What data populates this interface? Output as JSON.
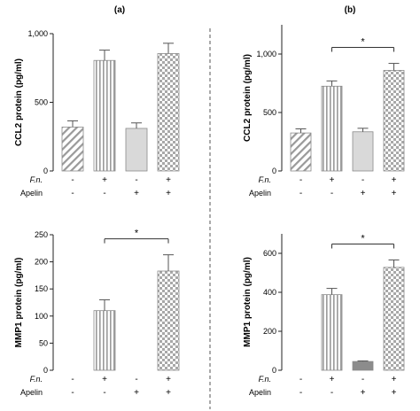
{
  "figure": {
    "panel_labels": [
      "(a)",
      "(b)"
    ],
    "row_labels": [
      "F.n.",
      "Apelin"
    ],
    "fn_signs": [
      "-",
      "+",
      "-",
      "+"
    ],
    "apelin_signs": [
      "-",
      "-",
      "+",
      "+"
    ],
    "fill_patterns": [
      "diagonal-hatch",
      "vertical-stripes",
      "solid-light-gray",
      "checkerboard"
    ]
  },
  "chart_data": [
    {
      "type": "bar",
      "panel": "(a)",
      "categories": [
        "F.n. - / Apelin -",
        "F.n. + / Apelin -",
        "F.n. - / Apelin +",
        "F.n. + / Apelin +"
      ],
      "values": [
        320,
        805,
        310,
        855
      ],
      "errors": [
        45,
        75,
        40,
        75
      ],
      "ylabel": "CCL2 protein (pg/ml)",
      "ylim": [
        0,
        1000
      ],
      "yticks": [
        0,
        500,
        1000
      ],
      "ytick_labels": [
        "0",
        "500",
        "1,000"
      ],
      "significance": [],
      "bar_colors": [
        "#ffffff",
        "#ffffff",
        "#d9d9d9",
        "#ffffff"
      ],
      "pattern_color": "#9a9a9a"
    },
    {
      "type": "bar",
      "panel": "(b)",
      "categories": [
        "F.n. - / Apelin -",
        "F.n. + / Apelin -",
        "F.n. - / Apelin +",
        "F.n. + / Apelin +"
      ],
      "values": [
        325,
        725,
        335,
        860
      ],
      "errors": [
        35,
        45,
        30,
        60
      ],
      "ylabel": "CCL2 protein (pg/ml)",
      "ylim": [
        0,
        1250
      ],
      "yticks": [
        0,
        500,
        1000
      ],
      "ytick_labels": [
        "0",
        "500",
        "1,000"
      ],
      "significance": [
        {
          "from": 1,
          "to": 3,
          "label": "*"
        }
      ],
      "bar_colors": [
        "#ffffff",
        "#ffffff",
        "#d9d9d9",
        "#ffffff"
      ],
      "pattern_color": "#9a9a9a"
    },
    {
      "type": "bar",
      "panel": "(a)",
      "categories": [
        "F.n. - / Apelin -",
        "F.n. + / Apelin -",
        "F.n. - / Apelin +",
        "F.n. + / Apelin +"
      ],
      "values": [
        0,
        110,
        0,
        183
      ],
      "errors": [
        0,
        20,
        0,
        30
      ],
      "ylabel": "MMP1 protein (pg/ml)",
      "ylim": [
        0,
        250
      ],
      "yticks": [
        0,
        50,
        100,
        150,
        200,
        250
      ],
      "ytick_labels": [
        "0",
        "50",
        "100",
        "150",
        "200",
        "250"
      ],
      "significance": [
        {
          "from": 1,
          "to": 3,
          "label": "*"
        }
      ],
      "bar_colors": [
        "#ffffff",
        "#ffffff",
        "#d9d9d9",
        "#ffffff"
      ],
      "pattern_color": "#9a9a9a"
    },
    {
      "type": "bar",
      "panel": "(b)",
      "categories": [
        "F.n. - / Apelin -",
        "F.n. + / Apelin -",
        "F.n. - / Apelin +",
        "F.n. + / Apelin +"
      ],
      "values": [
        0,
        388,
        45,
        528
      ],
      "errors": [
        0,
        32,
        3,
        38
      ],
      "ylabel": "MMP1 protein (pg/ml)",
      "ylim": [
        0,
        700
      ],
      "yticks": [
        0,
        200,
        400,
        600
      ],
      "ytick_labels": [
        "0",
        "200",
        "400",
        "600"
      ],
      "significance": [
        {
          "from": 1,
          "to": 3,
          "label": "*"
        }
      ],
      "bar_colors": [
        "#ffffff",
        "#ffffff",
        "#8c8c8c",
        "#ffffff"
      ],
      "pattern_color": "#9a9a9a"
    }
  ]
}
